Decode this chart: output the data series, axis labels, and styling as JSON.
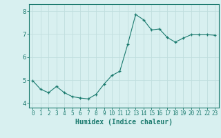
{
  "x": [
    0,
    1,
    2,
    3,
    4,
    5,
    6,
    7,
    8,
    9,
    10,
    11,
    12,
    13,
    14,
    15,
    16,
    17,
    18,
    19,
    20,
    21,
    22,
    23
  ],
  "y": [
    4.97,
    4.6,
    4.45,
    4.72,
    4.45,
    4.28,
    4.22,
    4.18,
    4.38,
    4.82,
    5.2,
    5.38,
    6.55,
    7.85,
    7.62,
    7.18,
    7.22,
    6.85,
    6.65,
    6.82,
    6.97,
    6.97,
    6.97,
    6.95
  ],
  "xlabel": "Humidex (Indice chaleur)",
  "ylim": [
    3.8,
    8.3
  ],
  "xlim": [
    -0.5,
    23.5
  ],
  "yticks": [
    4,
    5,
    6,
    7,
    8
  ],
  "xticks": [
    0,
    1,
    2,
    3,
    4,
    5,
    6,
    7,
    8,
    9,
    10,
    11,
    12,
    13,
    14,
    15,
    16,
    17,
    18,
    19,
    20,
    21,
    22,
    23
  ],
  "line_color": "#1a7a6e",
  "marker_color": "#1a7a6e",
  "bg_color": "#d8f0f0",
  "grid_color": "#c0dede",
  "axes_color": "#1a7a6e",
  "tick_color": "#1a7a6e",
  "label_color": "#1a7a6e"
}
